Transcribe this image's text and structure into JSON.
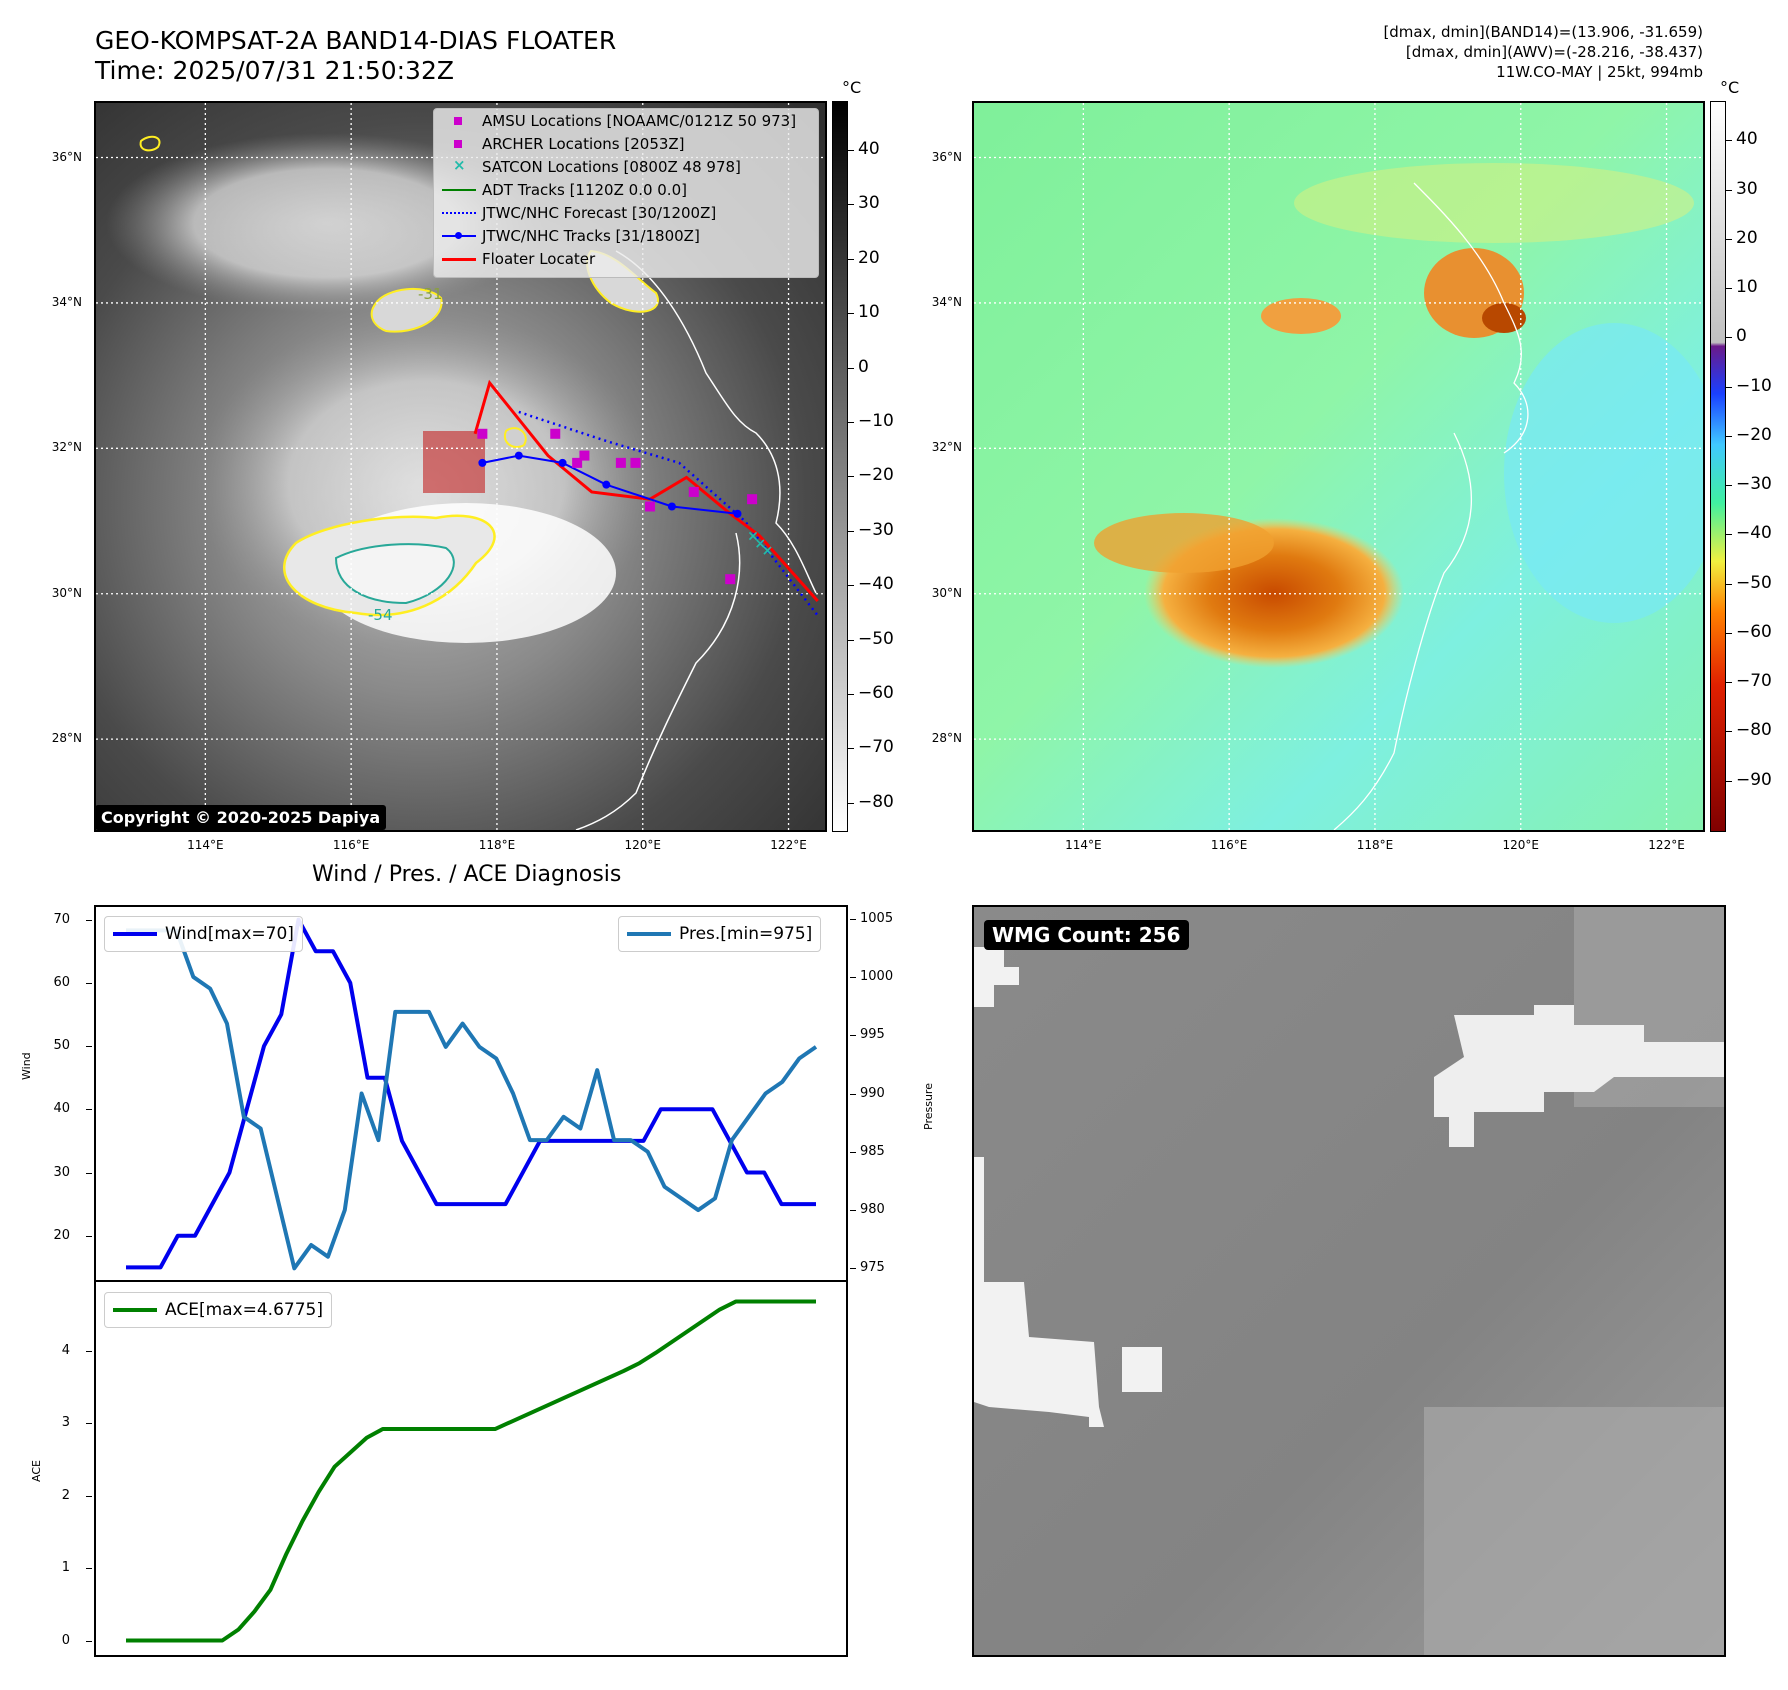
{
  "header": {
    "title_line1": "GEO-KOMPSAT-2A BAND14-DIAS FLOATER",
    "title_line2": "Time: 2025/07/31 21:50:32Z",
    "stat_line1": "[dmax, dmin](BAND14)=(13.906, -31.659)",
    "stat_line2": "[dmax, dmin](AWV)=(-28.216, -38.437)",
    "stat_line3": "11W.CO-MAY | 25kt, 994mb"
  },
  "map_axes": {
    "lat_labels": [
      "36°N",
      "34°N",
      "32°N",
      "30°N",
      "28°N"
    ],
    "lat_values": [
      36,
      34,
      32,
      30,
      28
    ],
    "lon_labels": [
      "114°E",
      "116°E",
      "118°E",
      "120°E",
      "122°E"
    ],
    "lon_values": [
      114,
      116,
      118,
      120,
      122
    ],
    "lon_range": [
      112.5,
      122.5
    ],
    "lat_range": [
      26.75,
      36.75
    ]
  },
  "ir_panel": {
    "colorbar_unit": "°C",
    "colorbar_ticks": [
      "40",
      "30",
      "20",
      "10",
      "0",
      "−10",
      "−20",
      "−30",
      "−40",
      "−50",
      "−60",
      "−70",
      "−80"
    ],
    "colorbar_values": [
      40,
      30,
      20,
      10,
      0,
      -10,
      -20,
      -30,
      -40,
      -50,
      -60,
      -70,
      -80
    ],
    "colorbar_range": [
      -85,
      49
    ],
    "contour_labels": [
      "-31",
      "-54"
    ],
    "copyright": "Copyright © 2020-2025 Dapiya",
    "legend": [
      {
        "label": "AMSU Locations [NOAAMC/0121Z 50 973]",
        "symbol": "square",
        "color": "#cc00cc"
      },
      {
        "label": "ARCHER Locations [2053Z]",
        "symbol": "square",
        "color": "#cc00cc"
      },
      {
        "label": "SATCON Locations [0800Z 48 978]",
        "symbol": "x",
        "color": "#22bbaa"
      },
      {
        "label": "ADT Tracks [1120Z 0.0 0.0]",
        "symbol": "line",
        "color": "#008000"
      },
      {
        "label": "JTWC/NHC Forecast [30/1200Z]",
        "symbol": "dotted",
        "color": "#0000ff"
      },
      {
        "label": "JTWC/NHC Tracks [31/1800Z]",
        "symbol": "line-dot",
        "color": "#0000ff"
      },
      {
        "label": "Floater Locater",
        "symbol": "line",
        "color": "#ff0000"
      }
    ],
    "jtwc_track": [
      [
        117.8,
        31.8
      ],
      [
        118.3,
        31.9
      ],
      [
        118.9,
        31.8
      ],
      [
        119.5,
        31.5
      ],
      [
        120.4,
        31.2
      ],
      [
        121.3,
        31.1
      ]
    ],
    "floater_track": [
      [
        117.7,
        32.2
      ],
      [
        117.9,
        32.9
      ],
      [
        118.7,
        31.9
      ],
      [
        119.3,
        31.4
      ],
      [
        120.1,
        31.3
      ],
      [
        120.6,
        31.6
      ],
      [
        121.2,
        31.1
      ],
      [
        121.6,
        30.8
      ],
      [
        122.4,
        29.9
      ]
    ],
    "forecast_track": [
      [
        118.3,
        32.5
      ],
      [
        119.5,
        32.1
      ],
      [
        120.5,
        31.8
      ],
      [
        121.4,
        31.0
      ],
      [
        122.4,
        29.7
      ]
    ],
    "amsu_points": [
      [
        117.8,
        32.2
      ],
      [
        118.8,
        32.2
      ],
      [
        119.1,
        31.8
      ],
      [
        119.2,
        31.9
      ],
      [
        119.7,
        31.8
      ],
      [
        119.9,
        31.8
      ],
      [
        120.1,
        31.2
      ],
      [
        120.7,
        31.4
      ],
      [
        121.2,
        30.2
      ],
      [
        121.5,
        31.3
      ]
    ],
    "satcon_points": [
      [
        121.5,
        30.8
      ],
      [
        121.6,
        30.7
      ],
      [
        121.7,
        30.6
      ]
    ]
  },
  "wv_panel": {
    "colorbar_unit": "°C",
    "colorbar_ticks": [
      "40",
      "30",
      "20",
      "10",
      "0",
      "−10",
      "−20",
      "−30",
      "−40",
      "−50",
      "−60",
      "−70",
      "−80",
      "−90"
    ],
    "colorbar_values": [
      40,
      30,
      20,
      10,
      0,
      -10,
      -20,
      -30,
      -40,
      -50,
      -60,
      -70,
      -80,
      -90
    ],
    "colorbar_range": [
      -100,
      48
    ]
  },
  "diagnosis": {
    "title": "Wind / Pres. / ACE Diagnosis",
    "wind_ylabel": "Wind",
    "pres_ylabel": "Pressure",
    "ace_ylabel": "ACE",
    "wind_legend": "Wind[max=70]",
    "pres_legend": "Pres.[min=975]",
    "ace_legend": "ACE[max=4.6775]",
    "wind_ticks": [
      20,
      30,
      40,
      50,
      60,
      70
    ],
    "pres_ticks": [
      975,
      980,
      985,
      990,
      995,
      1000,
      1005
    ],
    "ace_ticks": [
      0,
      1,
      2,
      3,
      4
    ]
  },
  "wmg_panel": {
    "label": "WMG Count: 256"
  },
  "chart_data": [
    {
      "type": "line",
      "title": "Wind / Pres. / ACE Diagnosis",
      "ylabel": "Wind",
      "ylim": [
        13,
        72
      ],
      "y2label": "Pressure",
      "y2lim": [
        974,
        1006
      ],
      "series": [
        {
          "name": "Wind[max=70]",
          "axis": "left",
          "color": "#0000ee",
          "values": [
            15,
            15,
            15,
            20,
            20,
            25,
            30,
            40,
            50,
            55,
            70,
            65,
            65,
            60,
            45,
            45,
            35,
            30,
            25,
            25,
            25,
            25,
            25,
            30,
            35,
            35,
            35,
            35,
            35,
            35,
            35,
            40,
            40,
            40,
            40,
            35,
            30,
            30,
            25,
            25,
            25
          ]
        },
        {
          "name": "Pres.[min=975]",
          "axis": "right",
          "color": "#1f77b4",
          "values": [
            1004,
            1004,
            1004,
            1004,
            1000,
            999,
            996,
            988,
            987,
            981,
            975,
            977,
            976,
            980,
            990,
            986,
            997,
            997,
            997,
            994,
            996,
            994,
            993,
            990,
            986,
            986,
            988,
            987,
            992,
            986,
            986,
            985,
            982,
            981,
            980,
            981,
            986,
            988,
            990,
            991,
            993,
            994
          ]
        }
      ]
    },
    {
      "type": "line",
      "ylabel": "ACE",
      "ylim": [
        -0.2,
        4.95
      ],
      "series": [
        {
          "name": "ACE[max=4.6775]",
          "color": "#008000",
          "values": [
            0,
            0,
            0,
            0,
            0,
            0,
            0,
            0.15,
            0.4,
            0.7,
            1.2,
            1.65,
            2.05,
            2.4,
            2.6,
            2.8,
            2.92,
            2.92,
            2.92,
            2.92,
            2.92,
            2.92,
            2.92,
            2.92,
            3.02,
            3.12,
            3.22,
            3.32,
            3.42,
            3.52,
            3.62,
            3.72,
            3.83,
            3.97,
            4.12,
            4.27,
            4.42,
            4.57,
            4.68,
            4.68,
            4.68,
            4.68,
            4.68,
            4.68
          ]
        }
      ]
    }
  ]
}
